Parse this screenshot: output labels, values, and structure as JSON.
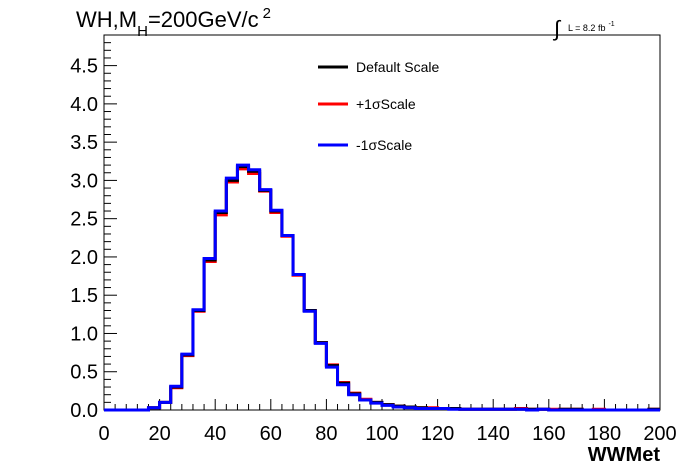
{
  "chart_data": {
    "type": "line",
    "style": "step-histogram",
    "title": {
      "prefix": "WH,M",
      "subscript": "H",
      "middle": "=200GeV/c",
      "superscript": "2"
    },
    "luminosity": {
      "integral_symbol": "∫",
      "text": "L = 8.2 fb",
      "superscript": "-1"
    },
    "xlabel": "WWMet",
    "ylabel": "",
    "xlim": [
      0,
      200
    ],
    "ylim": [
      0,
      4.9
    ],
    "bin_width": 4,
    "x_ticks": [
      "0",
      "20",
      "40",
      "60",
      "80",
      "100",
      "120",
      "140",
      "160",
      "180",
      "200"
    ],
    "y_ticks": [
      "0.0",
      "0.5",
      "1.0",
      "1.5",
      "2.0",
      "2.5",
      "3.0",
      "3.5",
      "4.0",
      "4.5"
    ],
    "legend_position": "top-center",
    "grid": false,
    "series": [
      {
        "name": "Default Scale",
        "color": "#000000",
        "values": [
          0.0,
          0.0,
          0.0,
          0.0,
          0.03,
          0.1,
          0.3,
          0.72,
          1.3,
          1.96,
          2.58,
          3.0,
          3.18,
          3.12,
          2.87,
          2.6,
          2.28,
          1.77,
          1.3,
          0.88,
          0.58,
          0.35,
          0.21,
          0.13,
          0.1,
          0.07,
          0.05,
          0.04,
          0.03,
          0.02,
          0.02,
          0.02,
          0.01,
          0.01,
          0.01,
          0.01,
          0.01,
          0.01,
          0.01,
          0.01,
          0.0,
          0.01,
          0.01,
          0.0,
          0.0,
          0.0,
          0.0,
          0.0,
          0.0,
          0.01
        ]
      },
      {
        "name": "+1σScale",
        "color": "#ff0000",
        "values": [
          0.0,
          0.0,
          0.0,
          0.0,
          0.03,
          0.1,
          0.29,
          0.71,
          1.29,
          1.94,
          2.55,
          2.98,
          3.15,
          3.09,
          2.86,
          2.58,
          2.27,
          1.76,
          1.3,
          0.88,
          0.59,
          0.36,
          0.22,
          0.14,
          0.1,
          0.07,
          0.05,
          0.04,
          0.03,
          0.03,
          0.02,
          0.02,
          0.01,
          0.01,
          0.01,
          0.01,
          0.01,
          0.02,
          0.01,
          0.01,
          0.01,
          0.01,
          0.01,
          0.0,
          0.01,
          0.0,
          0.0,
          0.0,
          0.0,
          0.01
        ]
      },
      {
        "name": "-1σScale",
        "color": "#0000ff",
        "values": [
          0.0,
          0.0,
          0.0,
          0.0,
          0.03,
          0.1,
          0.31,
          0.73,
          1.31,
          1.98,
          2.6,
          3.03,
          3.2,
          3.14,
          2.88,
          2.61,
          2.28,
          1.77,
          1.29,
          0.87,
          0.56,
          0.33,
          0.2,
          0.13,
          0.09,
          0.06,
          0.04,
          0.03,
          0.02,
          0.02,
          0.02,
          0.01,
          0.01,
          0.01,
          0.01,
          0.01,
          0.01,
          0.01,
          0.0,
          0.01,
          0.0,
          0.0,
          0.0,
          0.0,
          0.0,
          0.0,
          0.0,
          0.0,
          0.0,
          0.0
        ]
      }
    ]
  }
}
